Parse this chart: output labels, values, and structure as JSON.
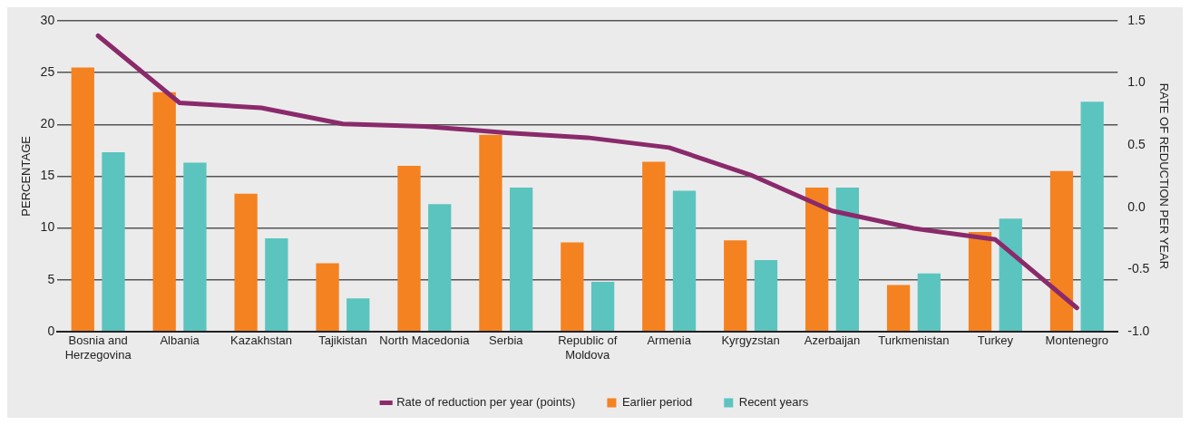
{
  "chart_data": {
    "type": "bar",
    "categories": [
      [
        "Bosnia and",
        "Herzegovina"
      ],
      "Albania",
      "Kazakhstan",
      "Tajikistan",
      "North Macedonia",
      "Serbia",
      [
        "Republic of",
        "Moldova"
      ],
      "Armenia",
      "Kyrgyzstan",
      "Azerbaijan",
      "Turkmenistan",
      "Turkey",
      "Montenegro"
    ],
    "ylabel": "PERCENTAGE",
    "y2label": "RATE OF REDUCTION PER YEAR",
    "ylim": [
      0,
      30
    ],
    "yticks": [
      0,
      5,
      10,
      15,
      20,
      25,
      30
    ],
    "y2lim": [
      -1,
      1.5
    ],
    "y2ticks": [
      {
        "value": -1,
        "label": "-1.0"
      },
      -0.5,
      {
        "value": 0,
        "label": "0.0"
      },
      0.5,
      {
        "value": 1,
        "label": "1.0"
      },
      1.5
    ],
    "grid": "y",
    "legend": "bottom",
    "series": [
      {
        "name": "Earlier period",
        "color": "#f58220",
        "values": [
          25.5,
          23.1,
          13.3,
          6.6,
          16.0,
          19.0,
          8.6,
          16.4,
          8.8,
          13.9,
          4.5,
          9.6,
          15.5
        ]
      },
      {
        "name": "Recent years",
        "color": "#5bc4bf",
        "values": [
          17.3,
          16.3,
          9.0,
          3.2,
          12.3,
          13.9,
          4.8,
          13.6,
          6.9,
          13.9,
          5.6,
          10.9,
          22.2
        ]
      },
      {
        "name": "Rate of reduction per year (points)",
        "type": "line",
        "axis": "y2",
        "color": "#8a2a6b",
        "values": [
          1.38,
          0.84,
          0.8,
          0.67,
          0.65,
          0.6,
          0.56,
          0.48,
          0.26,
          -0.03,
          -0.17,
          -0.26,
          -0.81
        ]
      }
    ]
  }
}
